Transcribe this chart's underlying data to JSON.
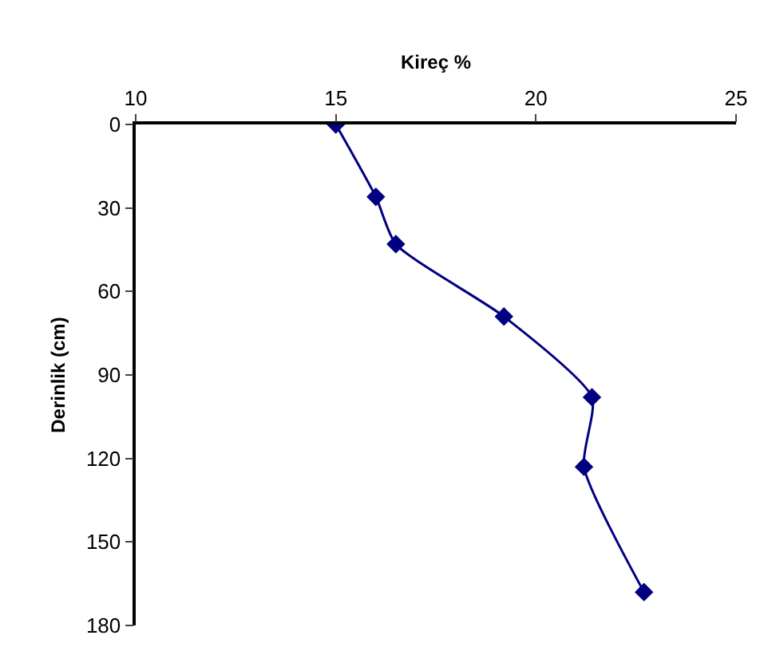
{
  "chart_data": {
    "type": "line",
    "xlabel": "Kireç %",
    "ylabel": "Derinlik (cm)",
    "xlim": [
      10,
      25
    ],
    "xticks": [
      10,
      15,
      20,
      25
    ],
    "ylim": [
      180,
      0
    ],
    "yticks": [
      0,
      30,
      60,
      90,
      120,
      150,
      180
    ],
    "grid": false,
    "marker": "diamond",
    "line_style": "solid",
    "series": [
      {
        "color": "#000080",
        "x": [
          15,
          16,
          16.5,
          19.2,
          21.4,
          21.2,
          22.7
        ],
        "values": [
          0,
          26,
          43,
          69,
          98,
          123,
          168
        ]
      }
    ]
  }
}
